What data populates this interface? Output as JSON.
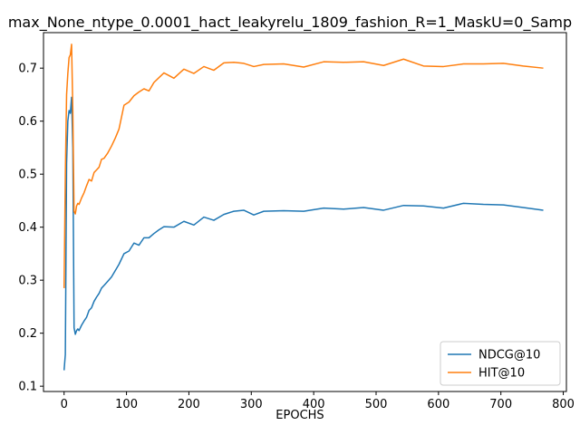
{
  "chart_data": {
    "type": "line",
    "title": "max_None_ntype_0.0001_hact_leakyrelu_1809_fashion_R=1_MaskU=0_Samp",
    "xlabel": "EPOCHS",
    "ylabel": "",
    "xlim": [
      -33,
      805
    ],
    "ylim": [
      0.09,
      0.767
    ],
    "xticks": [
      0,
      100,
      200,
      300,
      400,
      500,
      600,
      700,
      800
    ],
    "yticks": [
      0.1,
      0.2,
      0.3,
      0.4,
      0.5,
      0.6,
      0.7
    ],
    "grid": false,
    "legend_position": "lower-right",
    "series": [
      {
        "name": "NDCG@10",
        "color": "#1f77b4",
        "x": [
          0,
          2,
          4,
          6,
          8,
          10,
          12,
          14,
          16,
          18,
          20,
          22,
          24,
          28,
          32,
          36,
          40,
          44,
          48,
          52,
          56,
          60,
          64,
          70,
          76,
          82,
          88,
          96,
          104,
          112,
          120,
          128,
          136,
          144,
          152,
          160,
          176,
          192,
          208,
          224,
          240,
          256,
          272,
          288,
          304,
          320,
          352,
          384,
          416,
          448,
          480,
          512,
          544,
          576,
          608,
          640,
          672,
          704,
          736,
          768
        ],
        "y": [
          0.13,
          0.16,
          0.52,
          0.6,
          0.62,
          0.615,
          0.645,
          0.55,
          0.21,
          0.198,
          0.205,
          0.208,
          0.205,
          0.215,
          0.223,
          0.23,
          0.243,
          0.248,
          0.26,
          0.268,
          0.275,
          0.285,
          0.29,
          0.298,
          0.306,
          0.318,
          0.33,
          0.35,
          0.355,
          0.37,
          0.366,
          0.38,
          0.38,
          0.388,
          0.395,
          0.401,
          0.4,
          0.411,
          0.404,
          0.419,
          0.413,
          0.424,
          0.43,
          0.432,
          0.423,
          0.43,
          0.431,
          0.43,
          0.436,
          0.434,
          0.437,
          0.432,
          0.441,
          0.44,
          0.436,
          0.445,
          0.443,
          0.442,
          0.437,
          0.432
        ]
      },
      {
        "name": "HIT@10",
        "color": "#ff7f0e",
        "x": [
          0,
          2,
          4,
          6,
          8,
          10,
          12,
          14,
          16,
          18,
          20,
          22,
          24,
          28,
          32,
          36,
          40,
          44,
          48,
          52,
          56,
          60,
          64,
          70,
          76,
          82,
          88,
          96,
          104,
          112,
          120,
          128,
          136,
          144,
          152,
          160,
          176,
          192,
          208,
          224,
          240,
          256,
          272,
          288,
          304,
          320,
          352,
          384,
          416,
          448,
          480,
          512,
          544,
          576,
          608,
          640,
          672,
          704,
          736,
          768
        ],
        "y": [
          0.285,
          0.5,
          0.65,
          0.69,
          0.72,
          0.725,
          0.745,
          0.62,
          0.43,
          0.425,
          0.44,
          0.445,
          0.443,
          0.455,
          0.465,
          0.478,
          0.49,
          0.487,
          0.503,
          0.508,
          0.513,
          0.528,
          0.53,
          0.54,
          0.553,
          0.568,
          0.585,
          0.63,
          0.636,
          0.648,
          0.655,
          0.661,
          0.657,
          0.673,
          0.682,
          0.691,
          0.681,
          0.698,
          0.69,
          0.703,
          0.696,
          0.71,
          0.711,
          0.709,
          0.703,
          0.707,
          0.708,
          0.702,
          0.712,
          0.711,
          0.712,
          0.705,
          0.717,
          0.704,
          0.703,
          0.708,
          0.708,
          0.709,
          0.704,
          0.7
        ]
      }
    ]
  }
}
